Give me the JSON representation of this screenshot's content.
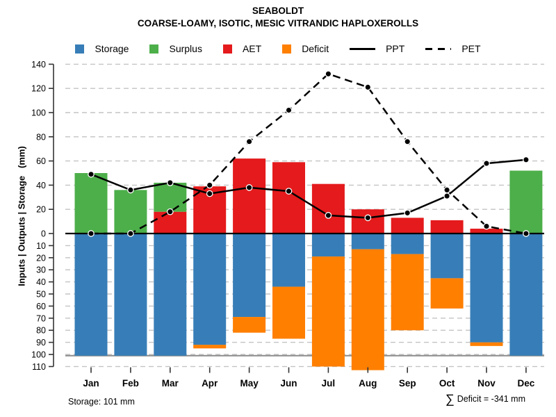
{
  "title": {
    "line1": "SEABOLDT",
    "line2": "COARSE-LOAMY, ISOTIC, MESIC VITRANDIC HAPLOXEROLLS"
  },
  "legend": {
    "items": [
      {
        "label": "Storage",
        "swatch": "square",
        "color": "#377EB8"
      },
      {
        "label": "Surplus",
        "swatch": "square",
        "color": "#4DAF4A"
      },
      {
        "label": "AET",
        "swatch": "square",
        "color": "#E41A1C"
      },
      {
        "label": "Deficit",
        "swatch": "square",
        "color": "#FF7F00"
      },
      {
        "label": "PPT",
        "swatch": "line-solid",
        "color": "#000000"
      },
      {
        "label": "PET",
        "swatch": "line-dashed",
        "color": "#000000"
      }
    ]
  },
  "y_axis": {
    "label": "Inputs | Outputs | Storage   (mm)",
    "upper_ticks": [
      140,
      120,
      100,
      80,
      60,
      40,
      20,
      0
    ],
    "lower_ticks": [
      10,
      20,
      30,
      40,
      50,
      60,
      70,
      80,
      90,
      100,
      110
    ]
  },
  "footer": {
    "storage_note": "Storage: 101 mm",
    "sigma": "∑",
    "deficit_note": "Deficit = -341 mm"
  },
  "colors": {
    "storage": "#377EB8",
    "surplus": "#4DAF4A",
    "aet": "#E41A1C",
    "deficit": "#FF7F00",
    "line": "#000000",
    "grid": "#C3C3C3",
    "capacity_line": "#8C8C8C",
    "axis": "#333333"
  },
  "chart_data": {
    "type": "bar",
    "title": "SEABOLDT",
    "subtitle": "COARSE-LOAMY, ISOTIC, MESIC VITRANDIC HAPLOXEROLLS",
    "xlabel": "",
    "ylabel": "Inputs | Outputs | Storage (mm)",
    "ylim": [
      -113,
      140
    ],
    "grid": "dashed",
    "legend_position": "top",
    "upper_tick_step": 20,
    "lower_tick_step": 10,
    "storage_capacity": 101,
    "storage_capacity_note_mm": 101,
    "deficit_sum_mm": -341,
    "categories": [
      "Jan",
      "Feb",
      "Mar",
      "Apr",
      "May",
      "Jun",
      "Jul",
      "Aug",
      "Sep",
      "Oct",
      "Nov",
      "Dec"
    ],
    "series": [
      {
        "name": "AET",
        "role": "bar-upper",
        "stack_order": 1,
        "color_key": "aet",
        "values": [
          0,
          0,
          18,
          39,
          62,
          59,
          41,
          20,
          13,
          11,
          4,
          0
        ]
      },
      {
        "name": "Surplus",
        "role": "bar-upper",
        "stack_order": 2,
        "color_key": "surplus",
        "values": [
          50,
          36,
          24,
          0,
          0,
          0,
          0,
          0,
          0,
          0,
          0,
          52
        ]
      },
      {
        "name": "Storage",
        "role": "bar-lower",
        "stack_order": 1,
        "color_key": "storage",
        "values": [
          101,
          101,
          101,
          92,
          69,
          44,
          19,
          13,
          17,
          37,
          90,
          101
        ]
      },
      {
        "name": "Deficit",
        "role": "bar-lower",
        "stack_order": 2,
        "color_key": "deficit",
        "values": [
          0,
          0,
          0,
          3,
          13,
          43,
          91,
          100,
          63,
          25,
          3,
          0
        ]
      },
      {
        "name": "PPT",
        "role": "line",
        "style": "solid",
        "values": [
          49,
          36,
          42,
          33,
          38,
          35,
          15,
          13,
          17,
          31,
          58,
          61
        ]
      },
      {
        "name": "PET",
        "role": "line",
        "style": "dashed",
        "values": [
          0,
          0,
          18,
          40,
          76,
          102,
          132,
          121,
          76,
          36,
          6,
          0
        ]
      }
    ]
  }
}
